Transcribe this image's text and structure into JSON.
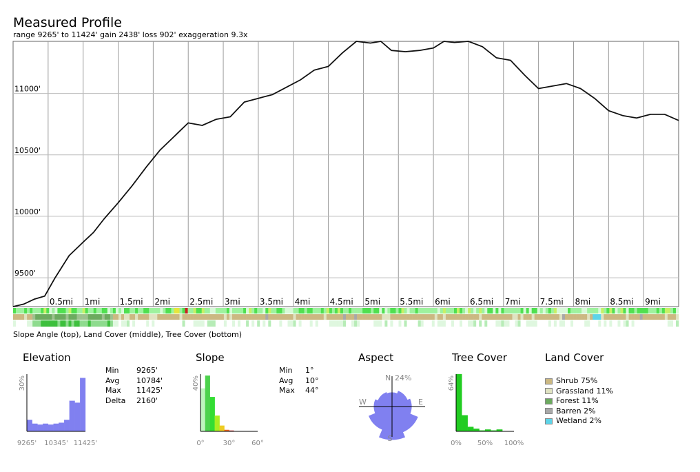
{
  "title": "Measured Profile",
  "subtitle": "range 9265' to 11424'  gain 2438'  loss 902'  exaggeration 9.3x",
  "strip_caption": "Slope Angle (top), Land Cover (middle), Tree Cover (bottom)",
  "chart_data": [
    {
      "type": "line",
      "name": "elevation-profile",
      "xlabel": "",
      "ylabel": "",
      "xlim": [
        0,
        9.5
      ],
      "ylim": [
        9265,
        11424
      ],
      "x_ticks": [
        0.5,
        1,
        1.5,
        2,
        2.5,
        3,
        3.5,
        4,
        4.5,
        5,
        5.5,
        6,
        6.5,
        7,
        7.5,
        8,
        8.5,
        9
      ],
      "x_tick_labels": [
        "0.5mi",
        "1mi",
        "1.5mi",
        "2mi",
        "2.5mi",
        "3mi",
        "3.5mi",
        "4mi",
        "4.5mi",
        "5mi",
        "5.5mi",
        "6mi",
        "6.5mi",
        "7mi",
        "7.5mi",
        "8mi",
        "8.5mi",
        "9mi"
      ],
      "y_ticks": [
        9500,
        10000,
        10500,
        11000
      ],
      "y_tick_labels": [
        "9500'",
        "10000'",
        "10500'",
        "11000'"
      ],
      "grid": true,
      "x": [
        0,
        0.15,
        0.3,
        0.45,
        0.6,
        0.8,
        1.0,
        1.15,
        1.3,
        1.5,
        1.7,
        1.9,
        2.1,
        2.3,
        2.5,
        2.7,
        2.9,
        3.1,
        3.3,
        3.5,
        3.7,
        3.9,
        4.1,
        4.3,
        4.5,
        4.7,
        4.9,
        5.1,
        5.25,
        5.4,
        5.6,
        5.8,
        6.0,
        6.15,
        6.3,
        6.5,
        6.7,
        6.9,
        7.1,
        7.3,
        7.5,
        7.7,
        7.9,
        8.1,
        8.3,
        8.5,
        8.7,
        8.9,
        9.1,
        9.3,
        9.5
      ],
      "y": [
        9265,
        9285,
        9325,
        9350,
        9500,
        9680,
        9790,
        9870,
        9980,
        10110,
        10250,
        10400,
        10540,
        10650,
        10760,
        10740,
        10790,
        10810,
        10930,
        10960,
        10990,
        11050,
        11110,
        11190,
        11220,
        11330,
        11424,
        11410,
        11424,
        11350,
        11340,
        11350,
        11370,
        11424,
        11415,
        11424,
        11380,
        11290,
        11270,
        11150,
        11040,
        11060,
        11080,
        11040,
        10960,
        10860,
        10820,
        10800,
        10830,
        10830,
        10780
      ]
    },
    {
      "type": "bar",
      "name": "elevation-histogram",
      "title": "Elevation",
      "x_tick_labels": [
        "9265'",
        "10345'",
        "11425'"
      ],
      "y_max_label": "30%",
      "ylim": [
        0,
        30
      ],
      "values": [
        6,
        4,
        3.5,
        4,
        3.5,
        4,
        4.5,
        6,
        16,
        15,
        28
      ],
      "color": "#8080f0"
    },
    {
      "type": "bar",
      "name": "slope-histogram",
      "title": "Slope",
      "x_tick_labels": [
        "0°",
        "30°",
        "60°"
      ],
      "y_max_label": "40%",
      "ylim": [
        0,
        40
      ],
      "values": [
        30,
        39,
        24,
        11,
        4,
        1,
        0.5,
        0,
        0,
        0,
        0,
        0
      ],
      "colors": [
        "#bff5bf",
        "#4dd24d",
        "#33dd33",
        "#aaee22",
        "#eecc22",
        "#ee6622",
        "#cc2222",
        "#cc2222",
        "#cc2222",
        "#cc2222",
        "#cc2222",
        "#cc2222"
      ]
    },
    {
      "type": "rose",
      "name": "aspect-rose",
      "title": "Aspect",
      "labels": {
        "n": "N",
        "e": "E",
        "s": "S",
        "w": "W"
      },
      "max_label": "24%",
      "max": 24,
      "values": [
        10,
        12,
        14,
        20,
        24,
        18,
        13,
        11
      ],
      "color": "#8080f0"
    },
    {
      "type": "bar",
      "name": "tree-cover-histogram",
      "title": "Tree Cover",
      "x_tick_labels": [
        "0%",
        "50%",
        "100%"
      ],
      "y_max_label": "64%",
      "ylim": [
        0,
        64
      ],
      "values": [
        64,
        18,
        5,
        3,
        1,
        2,
        1,
        2,
        0,
        0
      ],
      "color": "#22cc22"
    }
  ],
  "elevation_stats": [
    {
      "label": "Min",
      "value": "9265'"
    },
    {
      "label": "Avg",
      "value": "10784'"
    },
    {
      "label": "Max",
      "value": "11425'"
    },
    {
      "label": "Delta",
      "value": "2160'"
    }
  ],
  "slope_stats": [
    {
      "label": "Min",
      "value": "1°"
    },
    {
      "label": "Avg",
      "value": "10°"
    },
    {
      "label": "Max",
      "value": "44°"
    }
  ],
  "land_cover": {
    "title": "Land Cover",
    "items": [
      {
        "label": "Shrub 75%",
        "color": "#cbb882"
      },
      {
        "label": "Grassland 11%",
        "color": "#e0e3c2"
      },
      {
        "label": "Forest 11%",
        "color": "#6caa5f"
      },
      {
        "label": "Barren 2%",
        "color": "#a8a8a8"
      },
      {
        "label": "Wetland 2%",
        "color": "#5dd4e8"
      }
    ]
  }
}
